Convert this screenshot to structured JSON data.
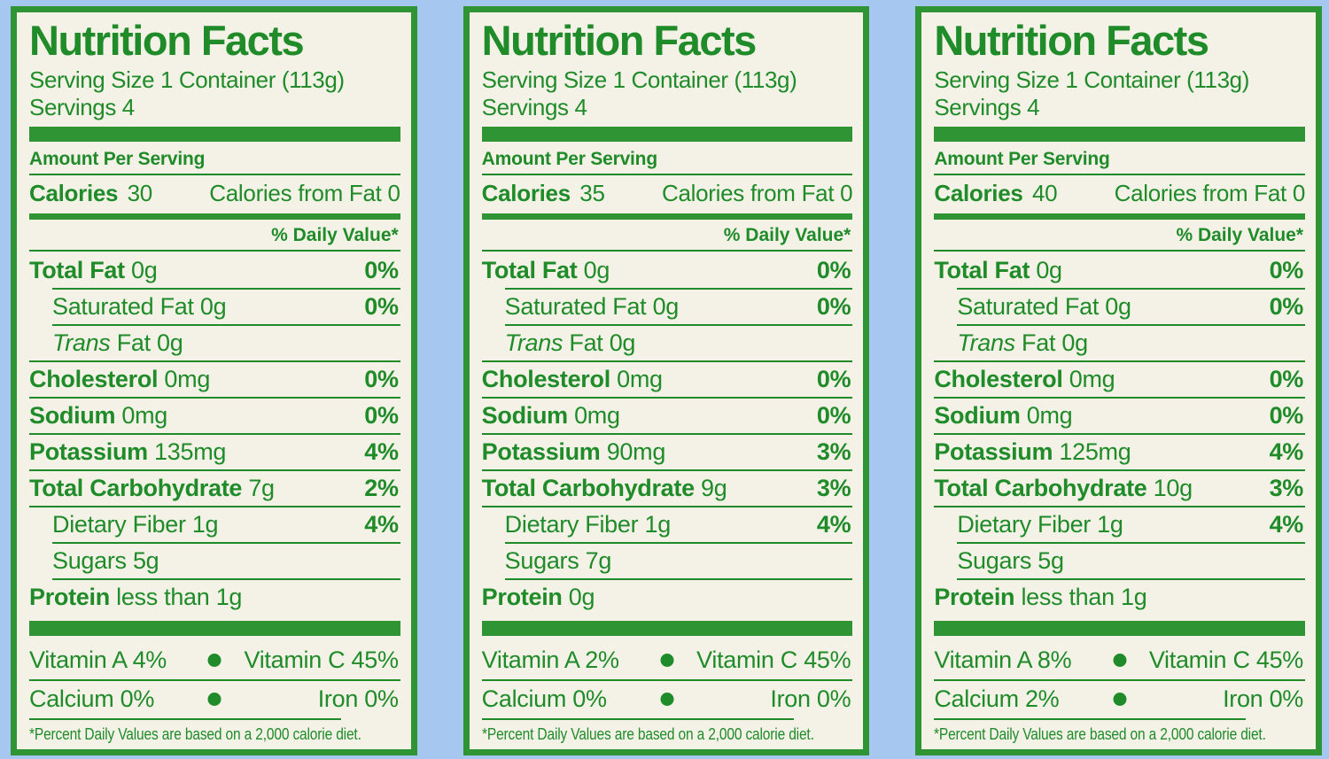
{
  "colors": {
    "green_text": "#1f8b29",
    "green_bar": "#2f9433",
    "panel_background": "#f4f2e7",
    "backdrop_blue": "#a5c7f0"
  },
  "labels": [
    {
      "title": "Nutrition Facts",
      "serving_size": "Serving Size 1 Container (113g)",
      "servings": "Servings 4",
      "amount_per_serving": "Amount Per Serving",
      "calories_label": "Calories",
      "calories_value": "30",
      "calories_from_fat": "Calories from Fat 0",
      "daily_value_header": "% Daily Value*",
      "rows": [
        {
          "bold": "Total Fat",
          "italic": "",
          "rest": " 0g",
          "dv": "0%",
          "indent": false,
          "sep": "full"
        },
        {
          "bold": "",
          "italic": "",
          "rest": "Saturated Fat 0g",
          "dv": "0%",
          "indent": true,
          "sep": "indent"
        },
        {
          "bold": "",
          "italic": "Trans",
          "rest": " Fat 0g",
          "dv": "",
          "indent": true,
          "sep": "indent"
        },
        {
          "bold": "Cholesterol",
          "italic": "",
          "rest": " 0mg",
          "dv": "0%",
          "indent": false,
          "sep": "full"
        },
        {
          "bold": "Sodium",
          "italic": "",
          "rest": " 0mg",
          "dv": "0%",
          "indent": false,
          "sep": "full"
        },
        {
          "bold": "Potassium",
          "italic": "",
          "rest": " 135mg",
          "dv": "4%",
          "indent": false,
          "sep": "full"
        },
        {
          "bold": "Total Carbohydrate",
          "italic": "",
          "rest": " 7g",
          "dv": "2%",
          "indent": false,
          "sep": "full"
        },
        {
          "bold": "",
          "italic": "",
          "rest": "Dietary Fiber 1g",
          "dv": "4%",
          "indent": true,
          "sep": "full"
        },
        {
          "bold": "",
          "italic": "",
          "rest": "Sugars 5g",
          "dv": "",
          "indent": true,
          "sep": "indent"
        },
        {
          "bold": "Protein",
          "italic": "",
          "rest": " less than 1g",
          "dv": "",
          "indent": false,
          "sep": "indent"
        }
      ],
      "vitamins": [
        {
          "left": "Vitamin A 4%",
          "right": "Vitamin C 45%"
        },
        {
          "left": "Calcium 0%",
          "right": "Iron 0%"
        }
      ],
      "footnote": "*Percent Daily Values are based on a 2,000 calorie diet."
    },
    {
      "title": "Nutrition Facts",
      "serving_size": "Serving Size 1 Container (113g)",
      "servings": "Servings 4",
      "amount_per_serving": "Amount Per Serving",
      "calories_label": "Calories",
      "calories_value": "35",
      "calories_from_fat": "Calories from Fat 0",
      "daily_value_header": "% Daily Value*",
      "rows": [
        {
          "bold": "Total Fat",
          "italic": "",
          "rest": " 0g",
          "dv": "0%",
          "indent": false,
          "sep": "full"
        },
        {
          "bold": "",
          "italic": "",
          "rest": "Saturated Fat 0g",
          "dv": "0%",
          "indent": true,
          "sep": "indent"
        },
        {
          "bold": "",
          "italic": "Trans",
          "rest": " Fat 0g",
          "dv": "",
          "indent": true,
          "sep": "indent"
        },
        {
          "bold": "Cholesterol",
          "italic": "",
          "rest": " 0mg",
          "dv": "0%",
          "indent": false,
          "sep": "full"
        },
        {
          "bold": "Sodium",
          "italic": "",
          "rest": " 0mg",
          "dv": "0%",
          "indent": false,
          "sep": "full"
        },
        {
          "bold": "Potassium",
          "italic": "",
          "rest": " 90mg",
          "dv": "3%",
          "indent": false,
          "sep": "full"
        },
        {
          "bold": "Total Carbohydrate",
          "italic": "",
          "rest": " 9g",
          "dv": "3%",
          "indent": false,
          "sep": "full"
        },
        {
          "bold": "",
          "italic": "",
          "rest": "Dietary Fiber 1g",
          "dv": "4%",
          "indent": true,
          "sep": "full"
        },
        {
          "bold": "",
          "italic": "",
          "rest": "Sugars 7g",
          "dv": "",
          "indent": true,
          "sep": "indent"
        },
        {
          "bold": "Protein",
          "italic": "",
          "rest": " 0g",
          "dv": "",
          "indent": false,
          "sep": "indent"
        }
      ],
      "vitamins": [
        {
          "left": "Vitamin A 2%",
          "right": "Vitamin C 45%"
        },
        {
          "left": "Calcium 0%",
          "right": "Iron 0%"
        }
      ],
      "footnote": "*Percent Daily Values are based on a 2,000 calorie diet."
    },
    {
      "title": "Nutrition Facts",
      "serving_size": "Serving Size 1 Container (113g)",
      "servings": "Servings 4",
      "amount_per_serving": "Amount Per Serving",
      "calories_label": "Calories",
      "calories_value": "40",
      "calories_from_fat": "Calories from Fat 0",
      "daily_value_header": "% Daily Value*",
      "rows": [
        {
          "bold": "Total Fat",
          "italic": "",
          "rest": " 0g",
          "dv": "0%",
          "indent": false,
          "sep": "full"
        },
        {
          "bold": "",
          "italic": "",
          "rest": "Saturated Fat 0g",
          "dv": "0%",
          "indent": true,
          "sep": "indent"
        },
        {
          "bold": "",
          "italic": "Trans",
          "rest": " Fat 0g",
          "dv": "",
          "indent": true,
          "sep": "indent"
        },
        {
          "bold": "Cholesterol",
          "italic": "",
          "rest": " 0mg",
          "dv": "0%",
          "indent": false,
          "sep": "full"
        },
        {
          "bold": "Sodium",
          "italic": "",
          "rest": " 0mg",
          "dv": "0%",
          "indent": false,
          "sep": "full"
        },
        {
          "bold": "Potassium",
          "italic": "",
          "rest": " 125mg",
          "dv": "4%",
          "indent": false,
          "sep": "full"
        },
        {
          "bold": "Total Carbohydrate",
          "italic": "",
          "rest": " 10g",
          "dv": "3%",
          "indent": false,
          "sep": "full"
        },
        {
          "bold": "",
          "italic": "",
          "rest": "Dietary Fiber 1g",
          "dv": "4%",
          "indent": true,
          "sep": "full"
        },
        {
          "bold": "",
          "italic": "",
          "rest": "Sugars 5g",
          "dv": "",
          "indent": true,
          "sep": "indent"
        },
        {
          "bold": "Protein",
          "italic": "",
          "rest": " less than 1g",
          "dv": "",
          "indent": false,
          "sep": "indent"
        }
      ],
      "vitamins": [
        {
          "left": "Vitamin A 8%",
          "right": "Vitamin C 45%"
        },
        {
          "left": "Calcium 2%",
          "right": "Iron 0%"
        }
      ],
      "footnote": "*Percent Daily Values are based on a 2,000 calorie diet."
    }
  ]
}
